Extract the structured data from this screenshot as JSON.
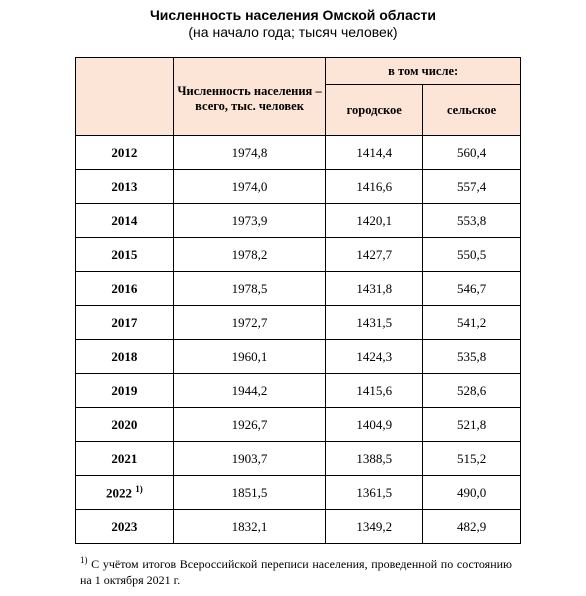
{
  "header": {
    "title": "Численность населения Омской области",
    "subtitle": "(на начало года; тысяч человек)"
  },
  "table": {
    "columns": {
      "total": "Численность населения – всего, тыс. человек",
      "group": "в том числе:",
      "urban": "городское",
      "rural": "сельское"
    },
    "rows": [
      {
        "year": "2012",
        "total": "1974,8",
        "urban": "1414,4",
        "rural": "560,4"
      },
      {
        "year": "2013",
        "total": "1974,0",
        "urban": "1416,6",
        "rural": "557,4"
      },
      {
        "year": "2014",
        "total": "1973,9",
        "urban": "1420,1",
        "rural": "553,8"
      },
      {
        "year": "2015",
        "total": "1978,2",
        "urban": "1427,7",
        "rural": "550,5"
      },
      {
        "year": "2016",
        "total": "1978,5",
        "urban": "1431,8",
        "rural": "546,7"
      },
      {
        "year": "2017",
        "total": "1972,7",
        "urban": "1431,5",
        "rural": "541,2"
      },
      {
        "year": "2018",
        "total": "1960,1",
        "urban": "1424,3",
        "rural": "535,8"
      },
      {
        "year": "2019",
        "total": "1944,2",
        "urban": "1415,6",
        "rural": "528,6"
      },
      {
        "year": "2020",
        "total": "1926,7",
        "urban": "1404,9",
        "rural": "521,8"
      },
      {
        "year": "2021",
        "total": "1903,7",
        "urban": "1388,5",
        "rural": "515,2"
      },
      {
        "year": "2022",
        "note": "1)",
        "total": "1851,5",
        "urban": "1361,5",
        "rural": "490,0"
      },
      {
        "year": "2023",
        "total": "1832,1",
        "urban": "1349,2",
        "rural": "482,9"
      }
    ]
  },
  "footnote": {
    "mark": "1)",
    "text": "С учётом итогов Всероссийской переписи населения, проведенной по состоянию на 1 октября 2021 г."
  }
}
